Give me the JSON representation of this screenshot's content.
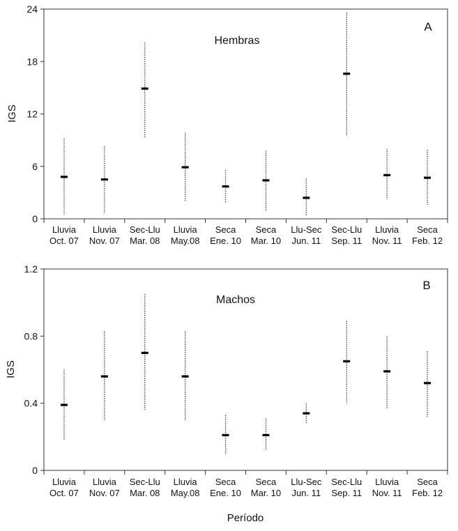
{
  "figure": {
    "xlabel": "Período"
  },
  "chart_data": [
    {
      "type": "scatter",
      "panel_label": "A",
      "title": "Hembras",
      "ylabel": "IGS",
      "ylim": [
        0,
        24
      ],
      "yticks": [
        "0",
        "6",
        "12",
        "18",
        "24"
      ],
      "categories": [
        [
          "Lluvia",
          "Oct. 07"
        ],
        [
          "Lluvia",
          "Nov. 07"
        ],
        [
          "Sec-Llu",
          "Mar. 08"
        ],
        [
          "Lluvia",
          "May.08"
        ],
        [
          "Seca",
          "Ene. 10"
        ],
        [
          "Seca",
          "Mar. 10"
        ],
        [
          "Llu-Sec",
          "Jun. 11"
        ],
        [
          "Sec-Llu",
          "Sep. 11"
        ],
        [
          "Lluvia",
          "Nov. 11"
        ],
        [
          "Seca",
          "Feb. 12"
        ]
      ],
      "mean": [
        4.8,
        4.5,
        14.9,
        5.9,
        3.7,
        4.4,
        2.4,
        16.6,
        5.0,
        4.7
      ],
      "low": [
        0.5,
        0.6,
        9.2,
        2.0,
        1.8,
        0.9,
        0.3,
        9.6,
        2.2,
        1.6
      ],
      "high": [
        9.2,
        8.3,
        20.2,
        9.8,
        5.6,
        7.8,
        4.6,
        23.6,
        8.0,
        7.9
      ],
      "grid": false,
      "legend": "none"
    },
    {
      "type": "scatter",
      "panel_label": "B",
      "title": "Machos",
      "ylabel": "IGS",
      "ylim": [
        0,
        1.2
      ],
      "yticks": [
        "0",
        "0.4",
        "0.8",
        "1.2"
      ],
      "categories": [
        [
          "Lluvia",
          "Oct. 07"
        ],
        [
          "Lluvia",
          "Nov. 07"
        ],
        [
          "Sec-Llu",
          "Mar. 08"
        ],
        [
          "Lluvia",
          "May.08"
        ],
        [
          "Seca",
          "Ene. 10"
        ],
        [
          "Seca",
          "Mar. 10"
        ],
        [
          "Llu-Sec",
          "Jun. 11"
        ],
        [
          "Sec-Llu",
          "Sep. 11"
        ],
        [
          "Lluvia",
          "Nov. 11"
        ],
        [
          "Seca",
          "Feb. 12"
        ]
      ],
      "mean": [
        0.39,
        0.56,
        0.7,
        0.56,
        0.21,
        0.21,
        0.34,
        0.65,
        0.59,
        0.52
      ],
      "low": [
        0.18,
        0.3,
        0.36,
        0.3,
        0.1,
        0.12,
        0.28,
        0.4,
        0.37,
        0.32
      ],
      "high": [
        0.6,
        0.83,
        1.05,
        0.83,
        0.33,
        0.31,
        0.4,
        0.89,
        0.8,
        0.71
      ],
      "grid": false,
      "legend": "none"
    }
  ]
}
